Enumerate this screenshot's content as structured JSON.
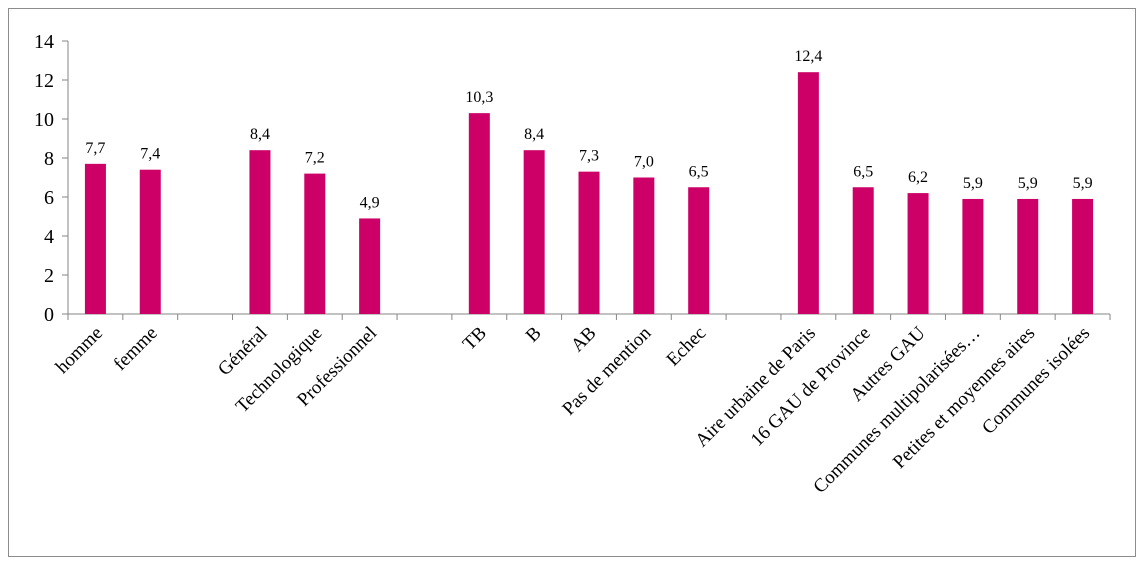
{
  "chart_data": {
    "type": "bar",
    "title": "",
    "xlabel": "",
    "ylabel": "",
    "ylim": [
      0,
      14
    ],
    "yticks": [
      0,
      2,
      4,
      6,
      8,
      10,
      12,
      14
    ],
    "grid": false,
    "legend": "none",
    "bar_color": "#cc0066",
    "groups": [
      {
        "categories": [
          "homme",
          "femme"
        ],
        "values": [
          7.7,
          7.4
        ],
        "labels": [
          "7,7",
          "7,4"
        ]
      },
      {
        "categories": [
          "Général",
          "Technologique",
          "Professionnel"
        ],
        "values": [
          8.4,
          7.2,
          4.9
        ],
        "labels": [
          "8,4",
          "7,2",
          "4,9"
        ]
      },
      {
        "categories": [
          "TB",
          "B",
          "AB",
          "Pas de mention",
          "Echec"
        ],
        "values": [
          10.3,
          8.4,
          7.3,
          7.0,
          6.5
        ],
        "labels": [
          "10,3",
          "8,4",
          "7,3",
          "7,0",
          "6,5"
        ]
      },
      {
        "categories": [
          "Aire urbaine de Paris",
          "16 GAU de Province",
          "Autres GAU",
          "Communes multipolarisées…",
          "Petites et moyennes aires",
          "Communes isolées"
        ],
        "values": [
          12.4,
          6.5,
          6.2,
          5.9,
          5.9,
          5.9
        ],
        "labels": [
          "12,4",
          "6,5",
          "6,2",
          "5,9",
          "5,9",
          "5,9"
        ]
      }
    ]
  }
}
